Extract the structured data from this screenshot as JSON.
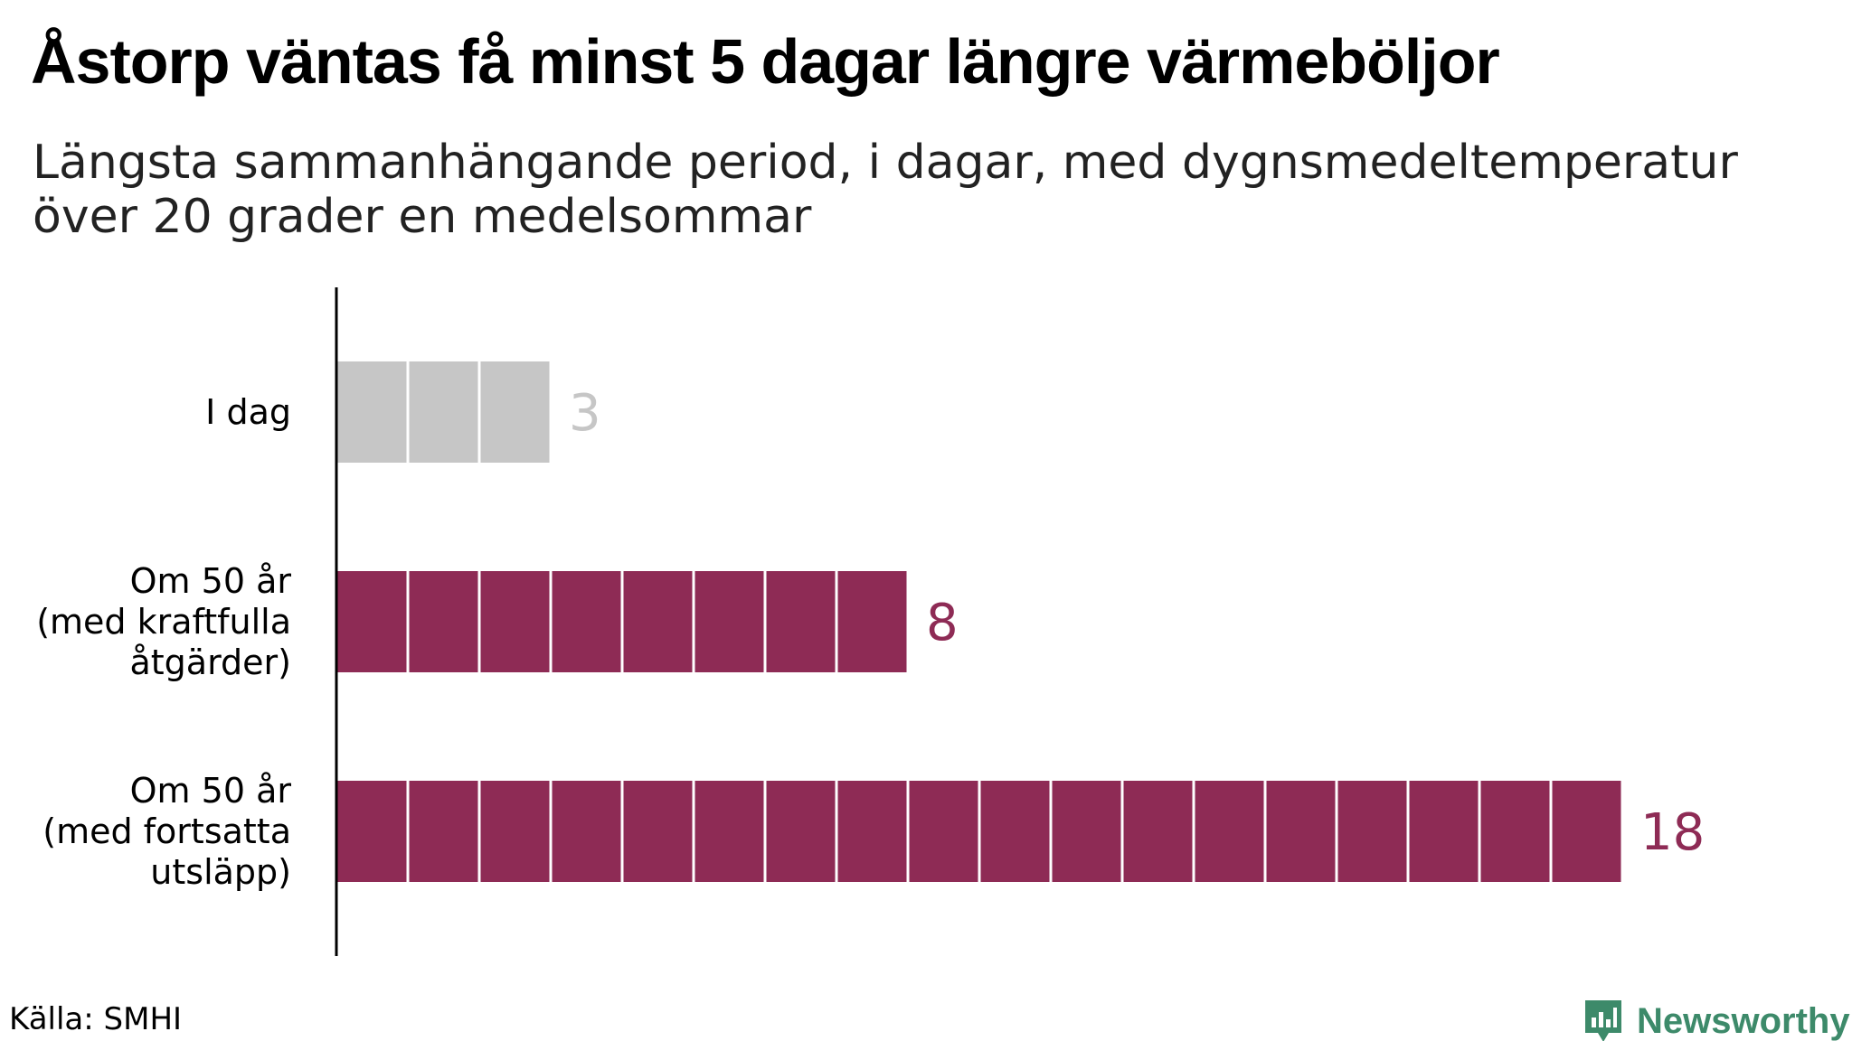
{
  "title": "Åstorp väntas få minst 5 dagar längre värmeböljor",
  "subtitle_lines": [
    "Längsta sammanhängande period, i dagar, med dygnsmedeltemperatur",
    "över 20 grader en medelsommar"
  ],
  "source": "Källa: SMHI",
  "brand": {
    "name": "Newsworthy",
    "icon": "bar-chart-speech-bubble-icon",
    "color": "#3d8a6a"
  },
  "colors": {
    "today": "#c6c6c6",
    "future": "#8e2b55",
    "today_label": "#c6c6c6",
    "future_label": "#8e2b55",
    "axis": "#000000"
  },
  "chart_data": {
    "type": "bar",
    "orientation": "horizontal",
    "unit_blocks": true,
    "categories": [
      [
        "I dag"
      ],
      [
        "Om 50 år",
        "(med kraftfulla",
        "åtgärder)"
      ],
      [
        "Om 50 år",
        "(med fortsatta",
        "utsläpp)"
      ]
    ],
    "values": [
      3,
      8,
      18
    ],
    "value_labels": [
      "3",
      "8",
      "18"
    ],
    "grid": false,
    "legend": "none"
  }
}
